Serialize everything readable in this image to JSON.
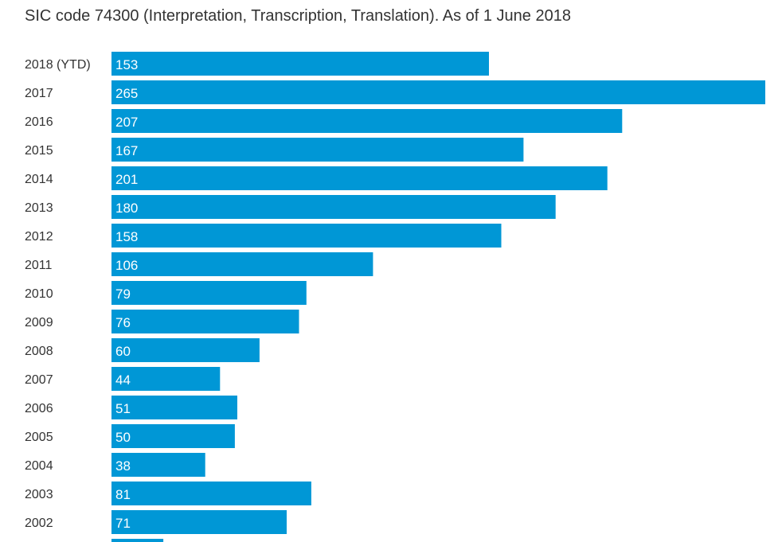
{
  "chart_data": {
    "type": "bar",
    "orientation": "horizontal",
    "title": "SIC code 74300 (Interpretation, Transcription, Translation). As of 1 June 2018",
    "categories": [
      "2018 (YTD)",
      "2017",
      "2016",
      "2015",
      "2014",
      "2013",
      "2012",
      "2011",
      "2010",
      "2009",
      "2008",
      "2007",
      "2006",
      "2005",
      "2004",
      "2003",
      "2002",
      ""
    ],
    "values": [
      153,
      265,
      207,
      167,
      201,
      180,
      158,
      106,
      79,
      76,
      60,
      44,
      51,
      50,
      38,
      81,
      71,
      21
    ],
    "value_labels": [
      "153",
      "265",
      "207",
      "167",
      "201",
      "180",
      "158",
      "106",
      "79",
      "76",
      "60",
      "44",
      "51",
      "50",
      "38",
      "81",
      "71",
      ""
    ],
    "xlim": [
      0,
      265
    ],
    "grid": false,
    "bar_color": "#0097d6"
  }
}
